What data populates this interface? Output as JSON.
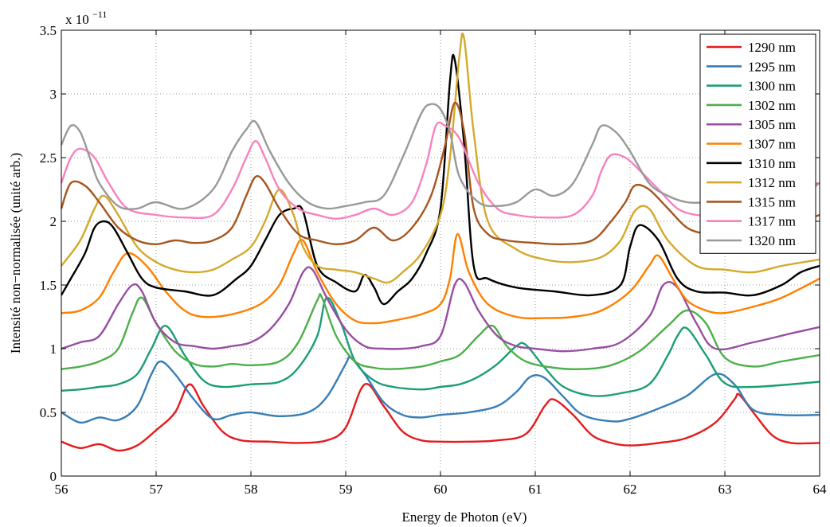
{
  "chart_data": {
    "type": "line",
    "xlabel": "Energy de Photon (eV)",
    "ylabel": "Intensité non−normalisée (unité arb.)",
    "scale_multiplier": "x 10",
    "scale_exponent": "−11",
    "xlim": [
      56,
      64
    ],
    "ylim": [
      0,
      3.5
    ],
    "x_ticks": [
      56,
      57,
      58,
      59,
      60,
      61,
      62,
      63,
      64
    ],
    "x_tick_labels": [
      "56",
      "57",
      "58",
      "59",
      "60",
      "61",
      "62",
      "63",
      "64"
    ],
    "y_ticks": [
      0,
      0.5,
      1,
      1.5,
      2,
      2.5,
      3,
      3.5
    ],
    "y_tick_labels": [
      "0",
      "0.5",
      "1",
      "1.5",
      "2",
      "2.5",
      "3",
      "3.5"
    ],
    "grid": true,
    "legend_position": "top-right",
    "series": [
      {
        "name": "1290 nm",
        "color": "#e41a1c",
        "x": [
          56,
          56.2,
          56.4,
          56.6,
          56.8,
          57,
          57.2,
          57.35,
          57.5,
          57.7,
          57.9,
          58.2,
          58.5,
          58.8,
          59.0,
          59.2,
          59.4,
          59.6,
          59.8,
          60,
          60.3,
          60.6,
          60.9,
          61.1,
          61.2,
          61.4,
          61.6,
          61.8,
          62,
          62.3,
          62.6,
          62.9,
          63.1,
          63.15,
          63.3,
          63.5,
          63.7,
          64
        ],
        "y": [
          0.27,
          0.22,
          0.25,
          0.2,
          0.24,
          0.36,
          0.5,
          0.72,
          0.55,
          0.35,
          0.28,
          0.27,
          0.26,
          0.28,
          0.38,
          0.72,
          0.55,
          0.35,
          0.28,
          0.27,
          0.27,
          0.28,
          0.33,
          0.55,
          0.6,
          0.48,
          0.32,
          0.26,
          0.24,
          0.26,
          0.3,
          0.42,
          0.6,
          0.64,
          0.5,
          0.32,
          0.26,
          0.26
        ]
      },
      {
        "name": "1295 nm",
        "color": "#377eb8",
        "x": [
          56,
          56.2,
          56.4,
          56.6,
          56.8,
          56.95,
          57.05,
          57.2,
          57.4,
          57.6,
          57.8,
          58,
          58.3,
          58.6,
          58.8,
          59.0,
          59.05,
          59.2,
          59.4,
          59.6,
          59.8,
          60,
          60.3,
          60.6,
          60.8,
          60.95,
          61.1,
          61.3,
          61.5,
          61.8,
          62,
          62.3,
          62.6,
          62.9,
          63.1,
          63.3,
          63.6,
          64
        ],
        "y": [
          0.5,
          0.42,
          0.46,
          0.44,
          0.55,
          0.8,
          0.9,
          0.8,
          0.6,
          0.45,
          0.48,
          0.5,
          0.47,
          0.5,
          0.62,
          0.88,
          0.93,
          0.8,
          0.58,
          0.48,
          0.46,
          0.48,
          0.5,
          0.55,
          0.66,
          0.78,
          0.77,
          0.62,
          0.48,
          0.43,
          0.45,
          0.53,
          0.63,
          0.8,
          0.72,
          0.52,
          0.48,
          0.48
        ]
      },
      {
        "name": "1300 nm",
        "color": "#1b9e77",
        "x": [
          56,
          56.2,
          56.4,
          56.6,
          56.8,
          56.95,
          57.1,
          57.3,
          57.5,
          57.7,
          58,
          58.3,
          58.5,
          58.7,
          58.8,
          58.95,
          59.1,
          59.3,
          59.5,
          59.8,
          60,
          60.2,
          60.4,
          60.6,
          60.8,
          60.9,
          61.1,
          61.3,
          61.6,
          61.9,
          62.2,
          62.4,
          62.5,
          62.6,
          62.8,
          63,
          63.3,
          64
        ],
        "y": [
          0.67,
          0.68,
          0.7,
          0.72,
          0.8,
          1.0,
          1.18,
          0.95,
          0.75,
          0.7,
          0.72,
          0.74,
          0.85,
          1.1,
          1.4,
          1.2,
          0.9,
          0.75,
          0.7,
          0.68,
          0.7,
          0.72,
          0.78,
          0.88,
          1.02,
          1.03,
          0.85,
          0.7,
          0.63,
          0.65,
          0.72,
          0.95,
          1.1,
          1.16,
          0.95,
          0.73,
          0.7,
          0.74
        ]
      },
      {
        "name": "1302 nm",
        "color": "#4daf4a",
        "x": [
          56,
          56.2,
          56.4,
          56.6,
          56.75,
          56.85,
          57.0,
          57.2,
          57.4,
          57.6,
          57.8,
          58,
          58.3,
          58.5,
          58.7,
          58.75,
          58.9,
          59.1,
          59.3,
          59.5,
          59.8,
          60,
          60.2,
          60.4,
          60.55,
          60.7,
          60.9,
          61.2,
          61.5,
          61.8,
          62.1,
          62.4,
          62.6,
          62.8,
          63,
          63.3,
          63.6,
          64
        ],
        "y": [
          0.84,
          0.86,
          0.9,
          1.0,
          1.28,
          1.4,
          1.2,
          0.98,
          0.88,
          0.86,
          0.88,
          0.87,
          0.9,
          1.05,
          1.38,
          1.4,
          1.1,
          0.9,
          0.85,
          0.84,
          0.86,
          0.9,
          0.95,
          1.1,
          1.18,
          1.02,
          0.9,
          0.85,
          0.84,
          0.87,
          0.98,
          1.18,
          1.3,
          1.2,
          0.93,
          0.86,
          0.9,
          0.95
        ]
      },
      {
        "name": "1305 nm",
        "color": "#984ea3",
        "x": [
          56,
          56.2,
          56.4,
          56.6,
          56.75,
          56.85,
          57.0,
          57.2,
          57.4,
          57.6,
          57.8,
          58,
          58.2,
          58.4,
          58.55,
          58.65,
          58.8,
          59,
          59.2,
          59.4,
          59.6,
          59.8,
          60,
          60.15,
          60.25,
          60.4,
          60.6,
          60.8,
          61,
          61.3,
          61.6,
          61.9,
          62.2,
          62.35,
          62.5,
          62.7,
          62.9,
          63.3,
          63.7,
          64
        ],
        "y": [
          1.0,
          1.05,
          1.1,
          1.35,
          1.5,
          1.45,
          1.2,
          1.05,
          1.02,
          1.0,
          1.02,
          1.05,
          1.15,
          1.35,
          1.6,
          1.62,
          1.4,
          1.15,
          1.02,
          1.0,
          1.0,
          1.02,
          1.1,
          1.5,
          1.52,
          1.3,
          1.1,
          1.02,
          1.0,
          0.98,
          1.0,
          1.05,
          1.25,
          1.5,
          1.48,
          1.2,
          1.0,
          1.05,
          1.12,
          1.17
        ]
      },
      {
        "name": "1307 nm",
        "color": "#ff7f00",
        "x": [
          56,
          56.2,
          56.4,
          56.55,
          56.7,
          56.9,
          57.1,
          57.3,
          57.5,
          57.8,
          58.1,
          58.3,
          58.45,
          58.55,
          58.7,
          58.9,
          59.1,
          59.3,
          59.5,
          59.8,
          60,
          60.1,
          60.18,
          60.3,
          60.5,
          60.8,
          61.1,
          61.4,
          61.7,
          62,
          62.2,
          62.3,
          62.45,
          62.6,
          62.8,
          63,
          63.3,
          63.6,
          64
        ],
        "y": [
          1.28,
          1.3,
          1.4,
          1.6,
          1.75,
          1.65,
          1.45,
          1.3,
          1.25,
          1.27,
          1.35,
          1.5,
          1.75,
          1.85,
          1.6,
          1.35,
          1.22,
          1.2,
          1.22,
          1.27,
          1.35,
          1.55,
          1.9,
          1.6,
          1.35,
          1.25,
          1.24,
          1.25,
          1.3,
          1.45,
          1.65,
          1.73,
          1.55,
          1.38,
          1.3,
          1.28,
          1.33,
          1.4,
          1.55
        ]
      },
      {
        "name": "1310 nm",
        "color": "#000000",
        "x": [
          56,
          56.1,
          56.25,
          56.35,
          56.45,
          56.55,
          56.7,
          56.85,
          57,
          57.3,
          57.6,
          57.85,
          58,
          58.15,
          58.3,
          58.45,
          58.55,
          58.7,
          58.9,
          59.1,
          59.2,
          59.3,
          59.4,
          59.55,
          59.7,
          59.85,
          60,
          60.1,
          60.15,
          60.25,
          60.35,
          60.5,
          60.8,
          61.2,
          61.6,
          61.9,
          62.0,
          62.1,
          62.3,
          62.5,
          62.7,
          63,
          63.3,
          63.6,
          63.8,
          64
        ],
        "y": [
          1.42,
          1.55,
          1.75,
          1.95,
          2.0,
          1.95,
          1.75,
          1.55,
          1.48,
          1.45,
          1.42,
          1.55,
          1.65,
          1.85,
          2.05,
          2.1,
          2.08,
          1.65,
          1.52,
          1.45,
          1.58,
          1.48,
          1.35,
          1.45,
          1.55,
          1.75,
          2.1,
          3.1,
          3.27,
          2.6,
          1.65,
          1.55,
          1.48,
          1.45,
          1.42,
          1.5,
          1.8,
          1.97,
          1.85,
          1.55,
          1.45,
          1.44,
          1.42,
          1.5,
          1.6,
          1.65
        ]
      },
      {
        "name": "1312 nm",
        "color": "#d4a92a",
        "x": [
          56,
          56.2,
          56.35,
          56.45,
          56.6,
          56.8,
          57,
          57.2,
          57.4,
          57.6,
          57.8,
          58,
          58.15,
          58.3,
          58.45,
          58.55,
          58.7,
          58.9,
          59.1,
          59.3,
          59.45,
          59.6,
          59.8,
          60,
          60.1,
          60.2,
          60.25,
          60.35,
          60.5,
          60.8,
          61.1,
          61.4,
          61.7,
          61.9,
          62.05,
          62.2,
          62.4,
          62.7,
          63,
          63.3,
          63.6,
          64
        ],
        "y": [
          1.65,
          1.85,
          2.1,
          2.2,
          2.05,
          1.8,
          1.68,
          1.62,
          1.6,
          1.62,
          1.7,
          1.8,
          2.0,
          2.25,
          2.05,
          1.8,
          1.65,
          1.62,
          1.6,
          1.55,
          1.52,
          1.6,
          1.75,
          2.05,
          2.5,
          3.3,
          3.43,
          2.7,
          2.0,
          1.78,
          1.7,
          1.68,
          1.72,
          1.85,
          2.08,
          2.1,
          1.85,
          1.65,
          1.62,
          1.6,
          1.65,
          1.7
        ]
      },
      {
        "name": "1315 nm",
        "color": "#a6561f",
        "x": [
          56,
          56.1,
          56.25,
          56.4,
          56.6,
          56.8,
          57,
          57.2,
          57.4,
          57.6,
          57.8,
          57.95,
          58.05,
          58.15,
          58.3,
          58.5,
          58.7,
          58.9,
          59.1,
          59.3,
          59.5,
          59.7,
          59.9,
          60.05,
          60.15,
          60.25,
          60.35,
          60.5,
          60.7,
          61,
          61.3,
          61.6,
          61.8,
          61.95,
          62.05,
          62.2,
          62.4,
          62.6,
          62.8,
          63,
          63.3,
          63.6,
          64
        ],
        "y": [
          2.1,
          2.3,
          2.28,
          2.15,
          1.95,
          1.85,
          1.82,
          1.85,
          1.83,
          1.85,
          1.95,
          2.2,
          2.35,
          2.3,
          2.1,
          1.9,
          1.85,
          1.82,
          1.85,
          1.95,
          1.85,
          1.95,
          2.2,
          2.6,
          2.93,
          2.7,
          2.1,
          1.9,
          1.85,
          1.83,
          1.82,
          1.85,
          2.0,
          2.15,
          2.28,
          2.25,
          2.1,
          1.95,
          1.9,
          1.88,
          1.9,
          1.95,
          2.05
        ]
      },
      {
        "name": "1317 nm",
        "color": "#f781bf",
        "x": [
          56,
          56.1,
          56.2,
          56.35,
          56.5,
          56.7,
          57,
          57.3,
          57.6,
          57.8,
          57.95,
          58.05,
          58.15,
          58.3,
          58.5,
          58.7,
          58.9,
          59.1,
          59.3,
          59.5,
          59.7,
          59.85,
          59.95,
          60.05,
          60.2,
          60.4,
          60.6,
          60.8,
          61.1,
          61.4,
          61.6,
          61.7,
          61.8,
          61.95,
          62.1,
          62.3,
          62.5,
          62.7,
          62.9,
          63.2,
          63.5,
          63.8,
          64
        ],
        "y": [
          2.3,
          2.5,
          2.57,
          2.5,
          2.3,
          2.1,
          2.05,
          2.03,
          2.05,
          2.25,
          2.5,
          2.63,
          2.5,
          2.25,
          2.1,
          2.05,
          2.02,
          2.05,
          2.1,
          2.05,
          2.15,
          2.45,
          2.75,
          2.75,
          2.65,
          2.3,
          2.1,
          2.05,
          2.03,
          2.05,
          2.2,
          2.4,
          2.52,
          2.5,
          2.4,
          2.25,
          2.1,
          2.05,
          2.05,
          2.08,
          2.12,
          2.2,
          2.3
        ]
      },
      {
        "name": "1320 nm",
        "color": "#999999",
        "x": [
          56,
          56.1,
          56.2,
          56.3,
          56.4,
          56.6,
          56.8,
          57,
          57.3,
          57.6,
          57.8,
          57.95,
          58.05,
          58.2,
          58.4,
          58.6,
          58.8,
          59.0,
          59.2,
          59.4,
          59.6,
          59.8,
          59.9,
          60.0,
          60.1,
          60.2,
          60.4,
          60.6,
          60.8,
          61.0,
          61.2,
          61.4,
          61.6,
          61.7,
          61.85,
          62,
          62.2,
          62.4,
          62.6,
          62.8,
          63,
          63.3,
          63.6,
          64
        ],
        "y": [
          2.6,
          2.75,
          2.7,
          2.5,
          2.3,
          2.12,
          2.1,
          2.15,
          2.1,
          2.25,
          2.55,
          2.72,
          2.78,
          2.55,
          2.3,
          2.15,
          2.1,
          2.12,
          2.15,
          2.2,
          2.5,
          2.85,
          2.92,
          2.88,
          2.7,
          2.35,
          2.15,
          2.12,
          2.15,
          2.25,
          2.2,
          2.3,
          2.6,
          2.75,
          2.7,
          2.55,
          2.3,
          2.2,
          2.15,
          2.15,
          2.18,
          2.2,
          2.25,
          2.3
        ]
      }
    ]
  }
}
